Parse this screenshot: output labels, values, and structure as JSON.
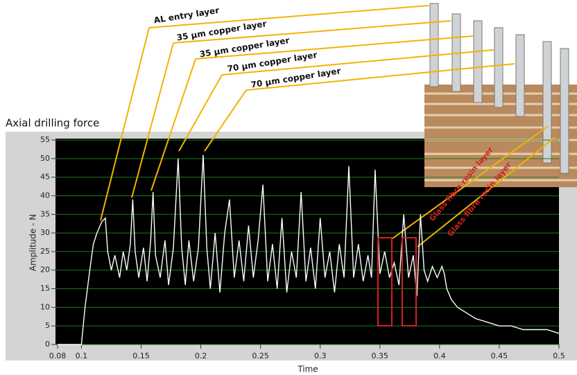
{
  "chart_data": {
    "type": "line",
    "title": "Axial drilling force",
    "x_label": "Time",
    "y_label": "Amplitude - N",
    "annotations": [
      "AL entry layer",
      "35 µm copper layer",
      "35 µm copper layer",
      "70 µm copper layer",
      "70 µm copper layer",
      "Glass fibre resin layer",
      "Glass fibre resin layer"
    ],
    "xlim": [
      0.08,
      0.5
    ],
    "xticks": [
      0.08,
      0.1,
      0.15,
      0.2,
      0.25,
      0.3,
      0.35,
      0.4,
      0.45,
      0.5
    ],
    "ylim": [
      0,
      55
    ],
    "yticks": [
      0,
      5,
      10,
      15,
      20,
      25,
      30,
      35,
      40,
      45,
      50,
      55
    ],
    "grid": true,
    "x": [
      0.08,
      0.095,
      0.1,
      0.103,
      0.107,
      0.11,
      0.113,
      0.117,
      0.12,
      0.122,
      0.125,
      0.128,
      0.132,
      0.135,
      0.138,
      0.141,
      0.143,
      0.145,
      0.148,
      0.152,
      0.155,
      0.158,
      0.16,
      0.162,
      0.166,
      0.17,
      0.173,
      0.177,
      0.181,
      0.184,
      0.187,
      0.19,
      0.194,
      0.198,
      0.202,
      0.205,
      0.208,
      0.212,
      0.216,
      0.22,
      0.224,
      0.228,
      0.232,
      0.236,
      0.24,
      0.244,
      0.248,
      0.252,
      0.256,
      0.26,
      0.264,
      0.268,
      0.272,
      0.276,
      0.28,
      0.284,
      0.288,
      0.292,
      0.296,
      0.3,
      0.304,
      0.308,
      0.312,
      0.316,
      0.32,
      0.324,
      0.328,
      0.332,
      0.336,
      0.34,
      0.343,
      0.346,
      0.35,
      0.354,
      0.358,
      0.362,
      0.366,
      0.37,
      0.374,
      0.378,
      0.381,
      0.384,
      0.387,
      0.39,
      0.394,
      0.398,
      0.402,
      0.404,
      0.406,
      0.41,
      0.415,
      0.42,
      0.43,
      0.44,
      0.45,
      0.46,
      0.47,
      0.48,
      0.49,
      0.5
    ],
    "series": [
      {
        "color": "#ffffff",
        "values": [
          0,
          0,
          0,
          10,
          20,
          27,
          30,
          33,
          34,
          25,
          20,
          24,
          18,
          25,
          20,
          27,
          39,
          25,
          18,
          26,
          17,
          28,
          41,
          24,
          18,
          28,
          16,
          26,
          50,
          26,
          16,
          28,
          17,
          26,
          51,
          26,
          15,
          30,
          14,
          30,
          39,
          18,
          28,
          17,
          32,
          18,
          28,
          43,
          17,
          27,
          15,
          34,
          14,
          25,
          18,
          41,
          17,
          26,
          15,
          34,
          18,
          25,
          14,
          27,
          18,
          48,
          18,
          27,
          17,
          24,
          18,
          47,
          19,
          25,
          18,
          22,
          16,
          35,
          18,
          24,
          13,
          35,
          20,
          17,
          21,
          18,
          21,
          19,
          15,
          12,
          10,
          9,
          7,
          6,
          5,
          5,
          4,
          4,
          4,
          3
        ]
      }
    ]
  }
}
